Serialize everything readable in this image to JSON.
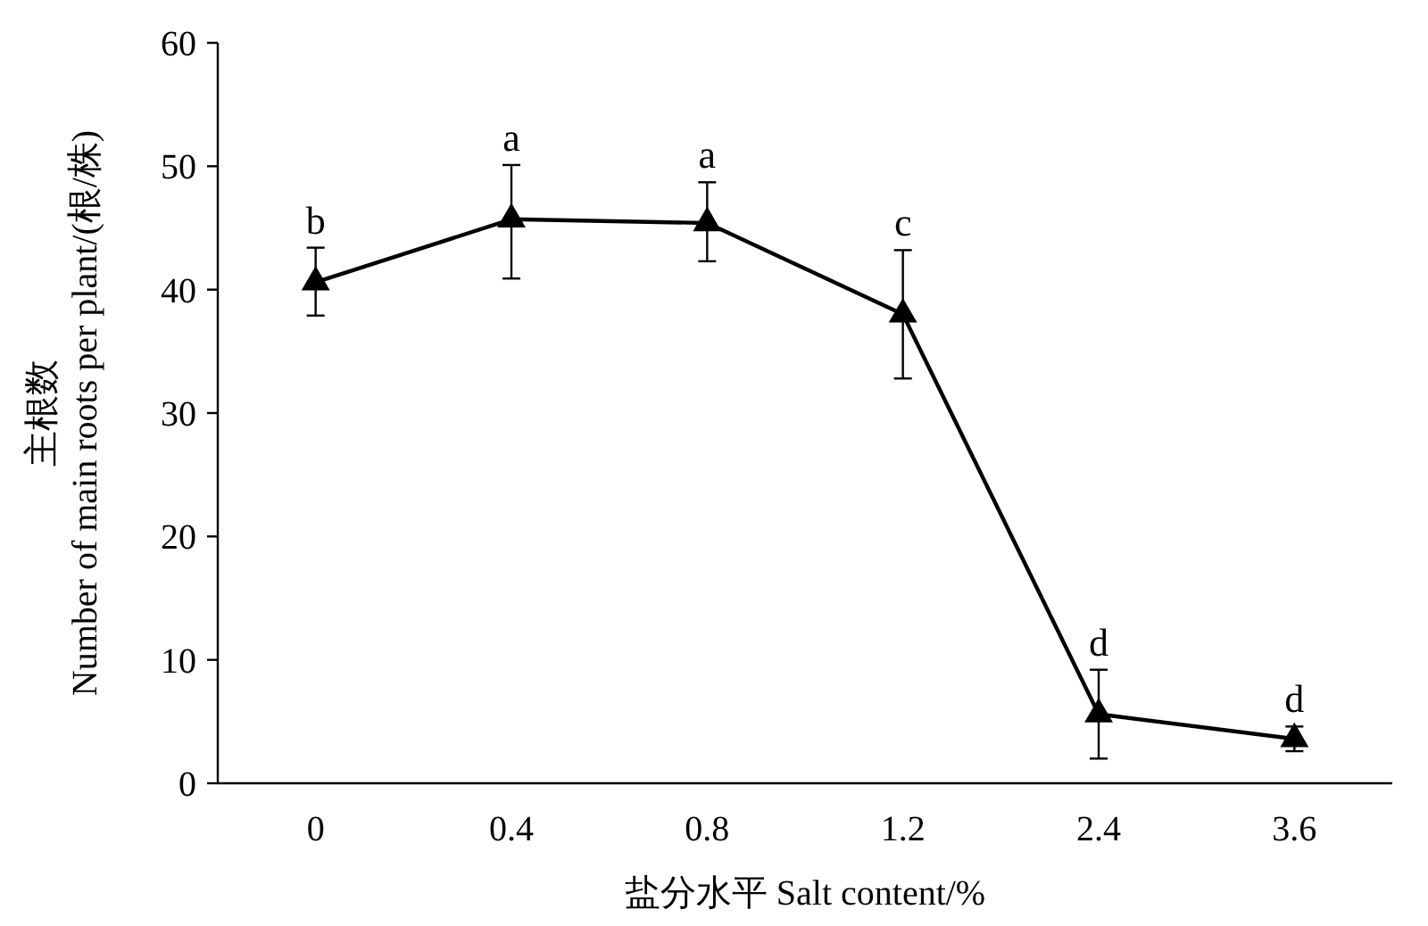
{
  "chart_data": {
    "type": "line",
    "xlabel": "盐分水平 Salt content/%",
    "ylabel": "主根数\nNumber of main roots per plant/(根/株)",
    "categories": [
      "0",
      "0.4",
      "0.8",
      "1.2",
      "2.4",
      "3.6"
    ],
    "series": [
      {
        "color": "#000000",
        "values": [
          40.6,
          45.7,
          45.4,
          38.0,
          5.6,
          3.6
        ],
        "errors": [
          [
            37.9,
            43.4
          ],
          [
            40.9,
            50.1
          ],
          [
            42.3,
            48.7
          ],
          [
            32.8,
            43.2
          ],
          [
            2.0,
            9.2
          ],
          [
            2.6,
            4.6
          ]
        ]
      }
    ],
    "ylim": [
      0,
      60
    ],
    "yticks": [
      0,
      10,
      20,
      30,
      40,
      50,
      60
    ],
    "grid": false,
    "marker": "triangle",
    "line_style": "solid",
    "annotations": [
      {
        "text": "b",
        "x": "0",
        "y": 43.4
      },
      {
        "text": "a",
        "x": "0.4",
        "y": 50.1
      },
      {
        "text": "a",
        "x": "0.8",
        "y": 48.7
      },
      {
        "text": "c",
        "x": "1.2",
        "y": 43.2
      },
      {
        "text": "d",
        "x": "2.4",
        "y": 9.2
      },
      {
        "text": "d",
        "x": "3.6",
        "y": 4.6
      }
    ]
  }
}
